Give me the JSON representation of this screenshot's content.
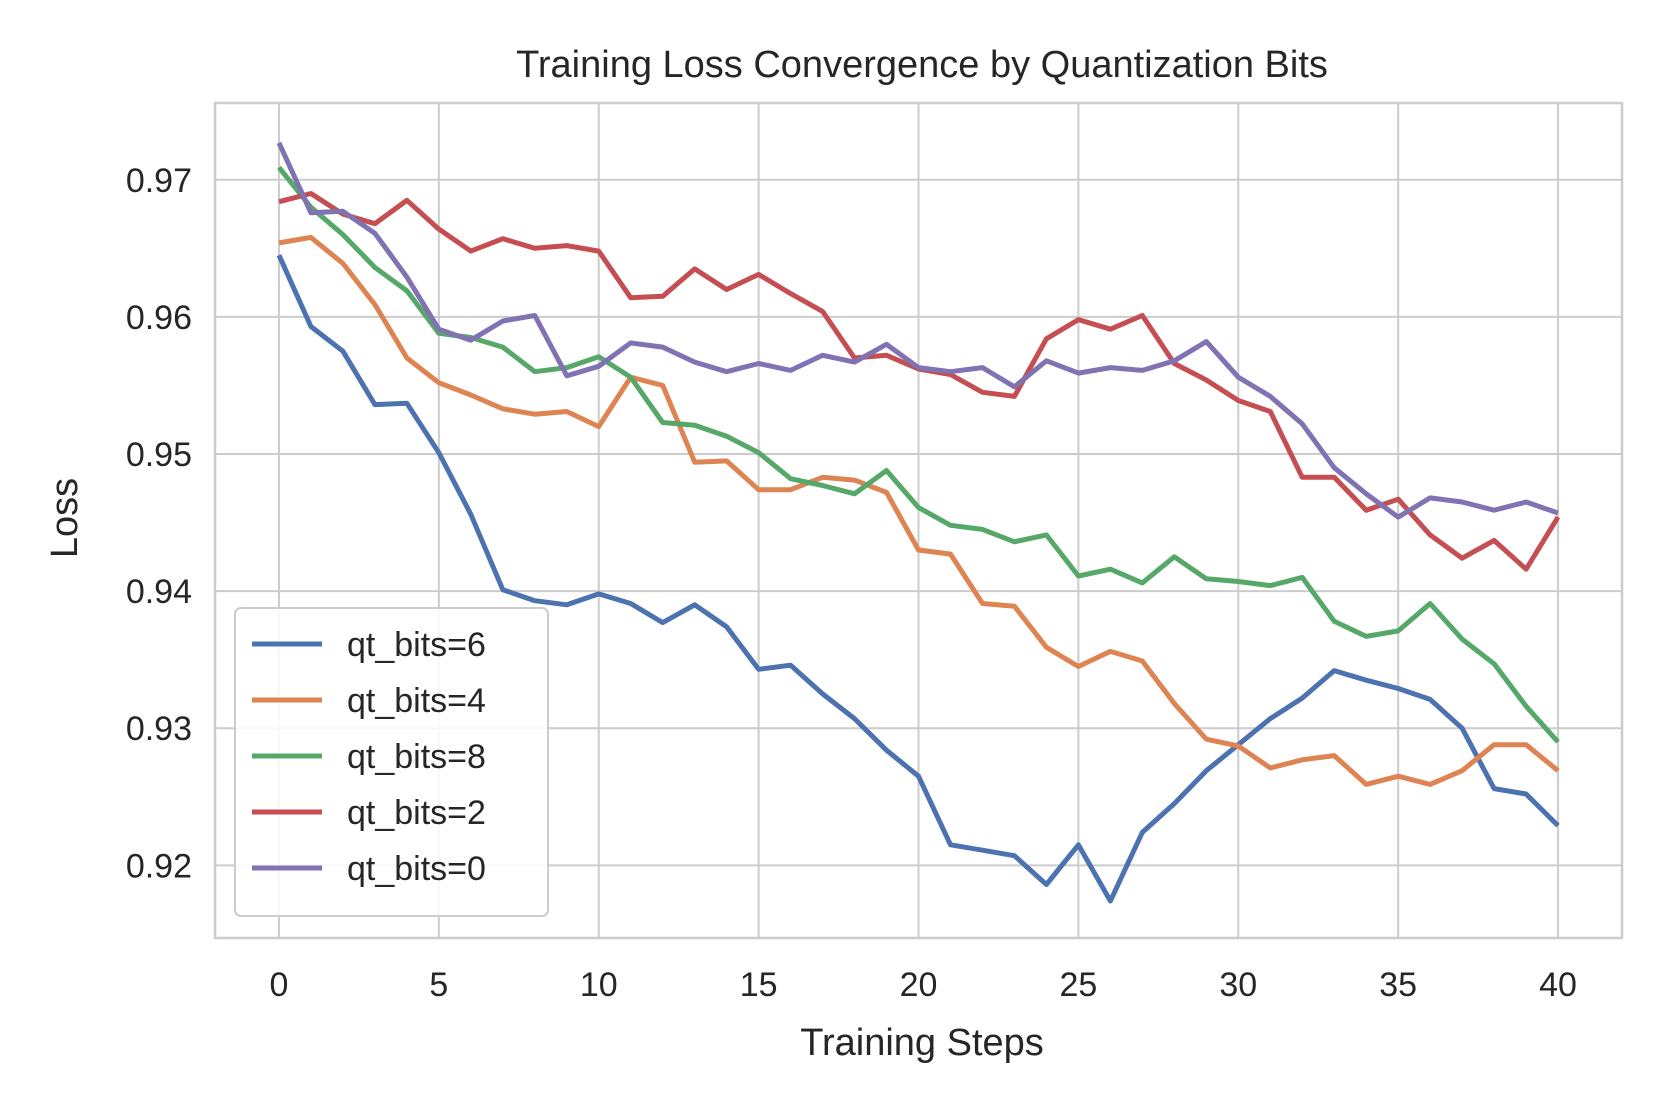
{
  "chart_data": {
    "type": "line",
    "title": "Training Loss Convergence by Quantization Bits",
    "xlabel": "Training Steps",
    "ylabel": "Loss",
    "xlim": [
      -2,
      42
    ],
    "ylim": [
      0.9147,
      0.9756
    ],
    "xticks": [
      0,
      5,
      10,
      15,
      20,
      25,
      30,
      35,
      40
    ],
    "yticks": [
      0.92,
      0.93,
      0.94,
      0.95,
      0.96,
      0.97
    ],
    "ytick_labels": [
      "0.92",
      "0.93",
      "0.94",
      "0.95",
      "0.96",
      "0.97"
    ],
    "grid": true,
    "legend_position": "lower-left",
    "x": [
      0,
      1,
      2,
      3,
      4,
      5,
      6,
      7,
      8,
      9,
      10,
      11,
      12,
      13,
      14,
      15,
      16,
      17,
      18,
      19,
      20,
      21,
      22,
      23,
      24,
      25,
      26,
      27,
      28,
      29,
      30,
      31,
      32,
      33,
      34,
      35,
      36,
      37,
      38,
      39,
      40
    ],
    "series": [
      {
        "name": "qt_bits=6",
        "color": "#4c72b0",
        "values": [
          0.9645,
          0.9593,
          0.9575,
          0.9536,
          0.9537,
          0.9501,
          0.9456,
          0.9401,
          0.9393,
          0.939,
          0.9398,
          0.9391,
          0.9377,
          0.939,
          0.9374,
          0.9343,
          0.9346,
          0.9325,
          0.9307,
          0.9284,
          0.9265,
          0.9215,
          0.9211,
          0.9207,
          0.9186,
          0.9215,
          0.9174,
          0.9224,
          0.9245,
          0.9269,
          0.9288,
          0.9307,
          0.9322,
          0.9342,
          0.9335,
          0.9329,
          0.9321,
          0.93,
          0.9256,
          0.9252,
          0.9229
        ]
      },
      {
        "name": "qt_bits=4",
        "color": "#dd8452",
        "values": [
          0.9654,
          0.9658,
          0.9639,
          0.9609,
          0.957,
          0.9552,
          0.9543,
          0.9533,
          0.9529,
          0.9531,
          0.952,
          0.9556,
          0.955,
          0.9494,
          0.9495,
          0.9474,
          0.9474,
          0.9483,
          0.9481,
          0.9472,
          0.943,
          0.9427,
          0.9391,
          0.9389,
          0.9359,
          0.9345,
          0.9356,
          0.9349,
          0.9318,
          0.9292,
          0.9287,
          0.9271,
          0.9277,
          0.928,
          0.9259,
          0.9265,
          0.9259,
          0.9269,
          0.9288,
          0.9288,
          0.9269
        ]
      },
      {
        "name": "qt_bits=8",
        "color": "#55a868",
        "values": [
          0.9709,
          0.968,
          0.966,
          0.9636,
          0.9619,
          0.9588,
          0.9585,
          0.9578,
          0.956,
          0.9563,
          0.9571,
          0.9556,
          0.9523,
          0.9521,
          0.9513,
          0.9501,
          0.9482,
          0.9477,
          0.9471,
          0.9488,
          0.9461,
          0.9448,
          0.9445,
          0.9436,
          0.9441,
          0.9411,
          0.9416,
          0.9406,
          0.9425,
          0.9409,
          0.9407,
          0.9404,
          0.941,
          0.9378,
          0.9367,
          0.9371,
          0.9391,
          0.9365,
          0.9347,
          0.9316,
          0.929
        ]
      },
      {
        "name": "qt_bits=2",
        "color": "#c44e52",
        "values": [
          0.9684,
          0.969,
          0.9675,
          0.9668,
          0.9685,
          0.9664,
          0.9648,
          0.9657,
          0.965,
          0.9652,
          0.9648,
          0.9614,
          0.9615,
          0.9635,
          0.962,
          0.9631,
          0.9617,
          0.9604,
          0.957,
          0.9572,
          0.9562,
          0.9558,
          0.9545,
          0.9542,
          0.9584,
          0.9598,
          0.9591,
          0.9601,
          0.9566,
          0.9554,
          0.9539,
          0.9531,
          0.9483,
          0.9483,
          0.9459,
          0.9467,
          0.9441,
          0.9424,
          0.9437,
          0.9416,
          0.9454
        ]
      },
      {
        "name": "qt_bits=0",
        "color": "#8172b3",
        "values": [
          0.9727,
          0.9676,
          0.9677,
          0.9661,
          0.9629,
          0.9591,
          0.9583,
          0.9597,
          0.9601,
          0.9557,
          0.9564,
          0.9581,
          0.9578,
          0.9567,
          0.956,
          0.9566,
          0.9561,
          0.9572,
          0.9567,
          0.958,
          0.9563,
          0.956,
          0.9563,
          0.9549,
          0.9568,
          0.9559,
          0.9563,
          0.9561,
          0.9568,
          0.9582,
          0.9556,
          0.9542,
          0.9522,
          0.949,
          0.9471,
          0.9454,
          0.9468,
          0.9465,
          0.9459,
          0.9465,
          0.9457
        ]
      }
    ]
  }
}
